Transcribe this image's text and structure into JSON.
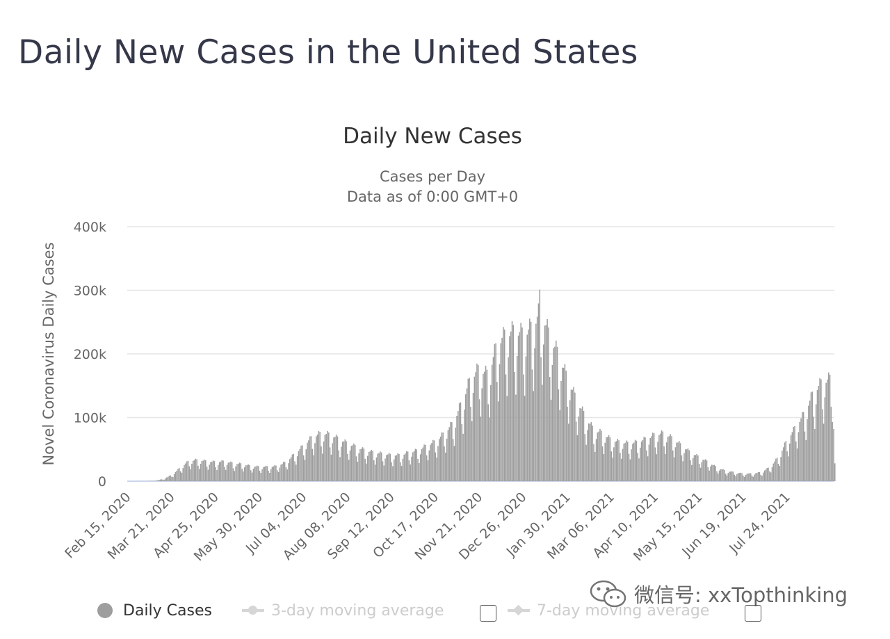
{
  "page": {
    "title": "Daily New Cases in the United States"
  },
  "chart_data": {
    "type": "bar",
    "title": "Daily New Cases",
    "subtitle_lines": [
      "Cases per Day",
      "Data as of 0:00 GMT+0"
    ],
    "ylabel": "Novel Coronavirus Daily Cases",
    "ylim": [
      0,
      400000
    ],
    "y_ticks": [
      0,
      100000,
      200000,
      300000,
      400000
    ],
    "y_tick_labels": [
      "0",
      "100k",
      "200k",
      "300k",
      "400k"
    ],
    "x_start": "2020-02-15",
    "x_end": "2021-08-31",
    "x_tick_labels": [
      "Feb 15, 2020",
      "Mar 21, 2020",
      "Apr 25, 2020",
      "May 30, 2020",
      "Jul 04, 2020",
      "Aug 08, 2020",
      "Sep 12, 2020",
      "Oct 17, 2020",
      "Nov 21, 2020",
      "Dec 26, 2020",
      "Jan 30, 2021",
      "Mar 06, 2021",
      "Apr 10, 2021",
      "May 15, 2021",
      "Jun 19, 2021",
      "Jul 24, 2021"
    ],
    "x_tick_dates": [
      "2020-02-15",
      "2020-03-21",
      "2020-04-25",
      "2020-05-30",
      "2020-07-04",
      "2020-08-08",
      "2020-09-12",
      "2020-10-17",
      "2020-11-21",
      "2020-12-26",
      "2021-01-30",
      "2021-03-06",
      "2021-04-10",
      "2021-05-15",
      "2021-06-19",
      "2021-07-24"
    ],
    "grid": true,
    "bar_color": "#9e9e9e",
    "series": [
      {
        "name": "Daily Cases",
        "weekly_dates": [
          "2020-02-15",
          "2020-02-22",
          "2020-02-29",
          "2020-03-07",
          "2020-03-14",
          "2020-03-21",
          "2020-03-28",
          "2020-04-04",
          "2020-04-11",
          "2020-04-18",
          "2020-04-25",
          "2020-05-02",
          "2020-05-09",
          "2020-05-16",
          "2020-05-23",
          "2020-05-30",
          "2020-06-06",
          "2020-06-13",
          "2020-06-20",
          "2020-06-27",
          "2020-07-04",
          "2020-07-11",
          "2020-07-18",
          "2020-07-25",
          "2020-08-01",
          "2020-08-08",
          "2020-08-15",
          "2020-08-22",
          "2020-08-29",
          "2020-09-05",
          "2020-09-12",
          "2020-09-19",
          "2020-09-26",
          "2020-10-03",
          "2020-10-10",
          "2020-10-17",
          "2020-10-24",
          "2020-10-31",
          "2020-11-07",
          "2020-11-14",
          "2020-11-21",
          "2020-11-28",
          "2020-12-05",
          "2020-12-12",
          "2020-12-19",
          "2020-12-26",
          "2021-01-02",
          "2021-01-09",
          "2021-01-16",
          "2021-01-23",
          "2021-01-30",
          "2021-02-06",
          "2021-02-13",
          "2021-02-20",
          "2021-02-27",
          "2021-03-06",
          "2021-03-13",
          "2021-03-20",
          "2021-03-27",
          "2021-04-03",
          "2021-04-10",
          "2021-04-17",
          "2021-04-24",
          "2021-05-01",
          "2021-05-08",
          "2021-05-15",
          "2021-05-22",
          "2021-05-29",
          "2021-06-05",
          "2021-06-12",
          "2021-06-19",
          "2021-06-26",
          "2021-07-03",
          "2021-07-10",
          "2021-07-17",
          "2021-07-24",
          "2021-07-31",
          "2021-08-07",
          "2021-08-14",
          "2021-08-21",
          "2021-08-28"
        ],
        "weekly_values": [
          0,
          0,
          100,
          400,
          3000,
          9000,
          20000,
          30000,
          31000,
          29000,
          28000,
          29000,
          26000,
          25000,
          22000,
          21000,
          21000,
          22000,
          28000,
          40000,
          52000,
          65000,
          70000,
          68000,
          62000,
          55000,
          50000,
          45000,
          42000,
          40000,
          38000,
          38000,
          42000,
          45000,
          52000,
          58000,
          70000,
          85000,
          115000,
          150000,
          165000,
          155000,
          200000,
          215000,
          220000,
          215000,
          225000,
          250000,
          210000,
          185000,
          150000,
          120000,
          95000,
          75000,
          70000,
          60000,
          57000,
          55000,
          57000,
          62000,
          68000,
          70000,
          62000,
          52000,
          42000,
          35000,
          28000,
          20000,
          15000,
          13000,
          11000,
          11000,
          13000,
          20000,
          35000,
          60000,
          80000,
          100000,
          130000,
          145000,
          150000
        ],
        "peak": {
          "date": "2021-01-08",
          "value": 301000
        },
        "last_values": [
          82000,
          28000
        ]
      }
    ]
  },
  "legend": {
    "items": [
      {
        "label": "Daily Cases",
        "active": true,
        "color": "#9e9e9e"
      },
      {
        "label": "3-day moving average",
        "active": false,
        "color": "#cccccc"
      },
      {
        "label": "7-day moving average",
        "active": false,
        "color": "#cccccc"
      }
    ]
  },
  "watermark": {
    "text": "微信号: xxTopthinking"
  }
}
